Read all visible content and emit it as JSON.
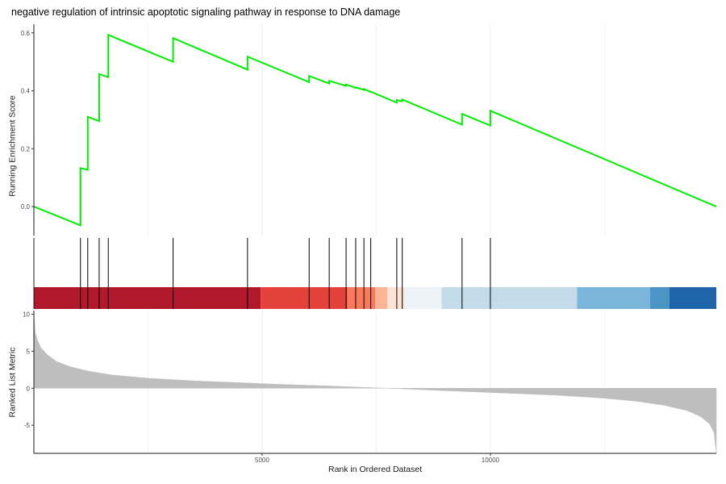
{
  "chart_data": {
    "type": "line",
    "title": "negative regulation of intrinsic apoptotic signaling pathway in response to DNA damage",
    "xlabel": "Rank in Ordered Dataset",
    "x_ticks": [
      5000,
      10000
    ],
    "xlim": [
      0,
      14950
    ],
    "colors": {
      "running_score": "#00ee00",
      "hits": "#000000",
      "ranked_metric": "#bebebe",
      "grid": "#ebebeb"
    },
    "panels": [
      {
        "name": "running-enrichment-score",
        "ylabel": "Running Enrichment Score",
        "ylim": [
          -0.1,
          0.63
        ],
        "y_ticks": [
          0.0,
          0.2,
          0.4,
          0.6
        ],
        "y_tick_labels": [
          "0.0",
          "0.2",
          "0.4",
          "0.6"
        ],
        "series": [
          {
            "x": [
              0,
              1020,
              1020,
              1180,
              1180,
              1430,
              1430,
              1630,
              1630,
              3050,
              3050,
              4680,
              4680,
              6030,
              6030,
              6470,
              6470,
              6840,
              6840,
              7050,
              7050,
              7230,
              7230,
              7380,
              7380,
              7950,
              7950,
              8070,
              8070,
              9380,
              9380,
              10000,
              10000,
              14950
            ],
            "y": [
              0.0,
              -0.065,
              0.133,
              0.127,
              0.31,
              0.295,
              0.458,
              0.447,
              0.593,
              0.5,
              0.582,
              0.473,
              0.518,
              0.43,
              0.451,
              0.425,
              0.434,
              0.417,
              0.422,
              0.41,
              0.412,
              0.403,
              0.406,
              0.396,
              0.397,
              0.359,
              0.368,
              0.364,
              0.37,
              0.283,
              0.32,
              0.28,
              0.331,
              0.0
            ]
          }
        ]
      },
      {
        "name": "gene-hits",
        "hits": [
          1020,
          1180,
          1430,
          1630,
          3050,
          4680,
          6030,
          6470,
          6840,
          7050,
          7230,
          7380,
          7950,
          8070,
          9380,
          10000
        ],
        "color_bar": [
          {
            "from": 0,
            "to": 4970,
            "color": "#b2182b"
          },
          {
            "from": 4970,
            "to": 6870,
            "color": "#e5413b"
          },
          {
            "from": 6870,
            "to": 7480,
            "color": "#fb7a5b"
          },
          {
            "from": 7480,
            "to": 7740,
            "color": "#fcb497"
          },
          {
            "from": 7740,
            "to": 8120,
            "color": "#fde2d6"
          },
          {
            "from": 8120,
            "to": 8930,
            "color": "#eef3fa"
          },
          {
            "from": 8930,
            "to": 11900,
            "color": "#c4dbea"
          },
          {
            "from": 11900,
            "to": 13500,
            "color": "#7ab6d9"
          },
          {
            "from": 13500,
            "to": 13920,
            "color": "#4b94c6"
          },
          {
            "from": 13920,
            "to": 14950,
            "color": "#1f63a8"
          }
        ]
      },
      {
        "name": "ranked-list-metric",
        "ylabel": "Ranked List Metric",
        "ylim": [
          -8.8,
          10.5
        ],
        "y_ticks": [
          10,
          5,
          0,
          -5
        ],
        "y_tick_labels": [
          "10",
          "5",
          "0",
          "-5"
        ],
        "series": [
          {
            "x": [
              0,
              30,
              80,
              150,
              300,
              500,
              800,
              1200,
              1700,
              2500,
              3500,
              4500,
              5500,
              6500,
              7500,
              8000,
              8500,
              9500,
              10500,
              11500,
              12500,
              13200,
              13800,
              14300,
              14600,
              14800,
              14900,
              14950
            ],
            "y": [
              10,
              7.5,
              6.5,
              5.5,
              4.5,
              3.6,
              2.9,
              2.3,
              1.8,
              1.35,
              1.0,
              0.75,
              0.5,
              0.3,
              0.05,
              -0.05,
              -0.2,
              -0.45,
              -0.7,
              -0.95,
              -1.35,
              -1.75,
              -2.3,
              -3.0,
              -3.8,
              -4.8,
              -6.0,
              -8.8
            ]
          }
        ]
      }
    ]
  }
}
